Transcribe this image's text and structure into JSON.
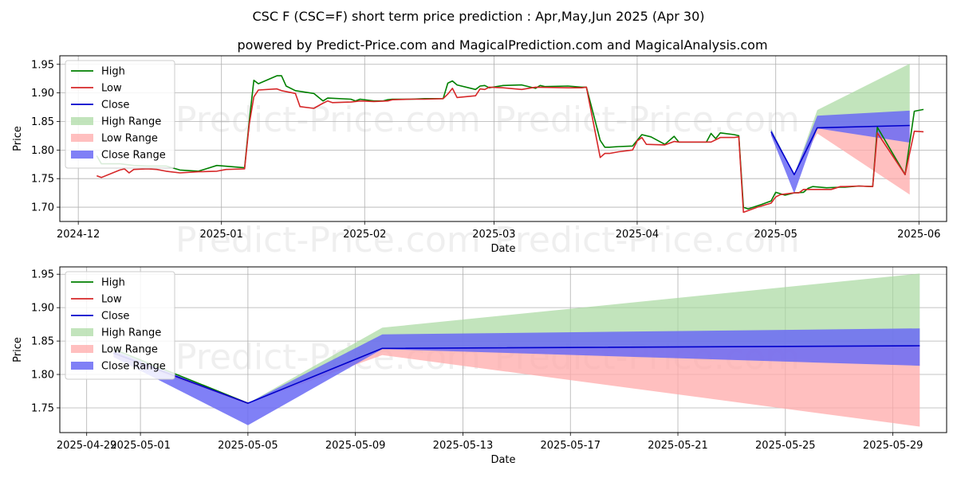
{
  "title": "CSC F (CSC=F) short term price prediction : Apr,May,Jun 2025 (Apr 30)",
  "subtitle": "powered by Predict-Price.com and MagicalPrediction.com and MagicalAnalysis.com",
  "watermark": "Predict-Price.com",
  "colors": {
    "high": "#008000",
    "low": "#d62728",
    "close": "#0000cc",
    "high_range": "#a8d8a0",
    "low_range": "#ffaaaa",
    "close_range": "#6a6af5"
  },
  "legend": [
    "High",
    "Low",
    "Close",
    "High Range",
    "Low Range",
    "Close Range"
  ],
  "chart_data": [
    {
      "type": "line",
      "xlabel": "Date",
      "ylabel": "Price",
      "xlim": [
        "2024-11-27",
        "2025-06-07"
      ],
      "ylim": [
        1.675,
        1.965
      ],
      "x_ticks": [
        "2024-12",
        "2025-01",
        "2025-02",
        "2025-03",
        "2025-04",
        "2025-05",
        "2025-06"
      ],
      "x_tick_dates": [
        "2024-12-01",
        "2025-01-01",
        "2025-02-01",
        "2025-03-01",
        "2025-04-01",
        "2025-05-01",
        "2025-06-01"
      ],
      "y_ticks": [
        "1.70",
        "1.75",
        "1.80",
        "1.85",
        "1.90",
        "1.95"
      ],
      "legend_position": "upper-left",
      "grid": true,
      "series": [
        {
          "name": "High",
          "points": [
            [
              "2024-12-05",
              1.79
            ],
            [
              "2024-12-06",
              1.776
            ],
            [
              "2024-12-10",
              1.776
            ],
            [
              "2024-12-13",
              1.773
            ],
            [
              "2024-12-16",
              1.772
            ],
            [
              "2024-12-20",
              1.772
            ],
            [
              "2024-12-23",
              1.765
            ],
            [
              "2024-12-27",
              1.763
            ],
            [
              "2024-12-31",
              1.773
            ],
            [
              "2025-01-06",
              1.769
            ],
            [
              "2025-01-07",
              1.85
            ],
            [
              "2025-01-08",
              1.922
            ],
            [
              "2025-01-09",
              1.916
            ],
            [
              "2025-01-13",
              1.93
            ],
            [
              "2025-01-14",
              1.93
            ],
            [
              "2025-01-15",
              1.912
            ],
            [
              "2025-01-17",
              1.904
            ],
            [
              "2025-01-21",
              1.899
            ],
            [
              "2025-01-23",
              1.886
            ],
            [
              "2025-01-24",
              1.891
            ],
            [
              "2025-01-29",
              1.889
            ],
            [
              "2025-01-30",
              1.886
            ],
            [
              "2025-01-31",
              1.889
            ],
            [
              "2025-02-03",
              1.886
            ],
            [
              "2025-02-05",
              1.886
            ],
            [
              "2025-02-06",
              1.888
            ],
            [
              "2025-02-07",
              1.889
            ],
            [
              "2025-02-11",
              1.889
            ],
            [
              "2025-02-14",
              1.89
            ],
            [
              "2025-02-18",
              1.89
            ],
            [
              "2025-02-19",
              1.917
            ],
            [
              "2025-02-20",
              1.921
            ],
            [
              "2025-02-21",
              1.914
            ],
            [
              "2025-02-25",
              1.906
            ],
            [
              "2025-02-26",
              1.912
            ],
            [
              "2025-02-27",
              1.913
            ],
            [
              "2025-02-28",
              1.909
            ],
            [
              "2025-03-03",
              1.913
            ],
            [
              "2025-03-07",
              1.914
            ],
            [
              "2025-03-10",
              1.908
            ],
            [
              "2025-03-11",
              1.913
            ],
            [
              "2025-03-12",
              1.911
            ],
            [
              "2025-03-17",
              1.912
            ],
            [
              "2025-03-20",
              1.91
            ],
            [
              "2025-03-21",
              1.91
            ],
            [
              "2025-03-24",
              1.817
            ],
            [
              "2025-03-25",
              1.805
            ],
            [
              "2025-03-26",
              1.805
            ],
            [
              "2025-03-28",
              1.806
            ],
            [
              "2025-03-31",
              1.807
            ],
            [
              "2025-04-02",
              1.827
            ],
            [
              "2025-04-04",
              1.823
            ],
            [
              "2025-04-07",
              1.81
            ],
            [
              "2025-04-09",
              1.824
            ],
            [
              "2025-04-10",
              1.814
            ],
            [
              "2025-04-14",
              1.814
            ],
            [
              "2025-04-16",
              1.814
            ],
            [
              "2025-04-17",
              1.829
            ],
            [
              "2025-04-18",
              1.82
            ],
            [
              "2025-04-19",
              1.83
            ],
            [
              "2025-04-22",
              1.827
            ],
            [
              "2025-04-23",
              1.825
            ],
            [
              "2025-04-24",
              1.7
            ],
            [
              "2025-04-25",
              1.697
            ],
            [
              "2025-04-28",
              1.705
            ],
            [
              "2025-04-30",
              1.711
            ],
            [
              "2025-05-01",
              1.726
            ],
            [
              "2025-05-03",
              1.721
            ],
            [
              "2025-05-05",
              1.725
            ],
            [
              "2025-05-07",
              1.726
            ],
            [
              "2025-05-08",
              1.733
            ],
            [
              "2025-05-09",
              1.736
            ],
            [
              "2025-05-12",
              1.734
            ],
            [
              "2025-05-15",
              1.735
            ],
            [
              "2025-05-16",
              1.735
            ],
            [
              "2025-05-19",
              1.737
            ],
            [
              "2025-05-22",
              1.736
            ],
            [
              "2025-05-23",
              1.84
            ],
            [
              "2025-05-29",
              1.757
            ],
            [
              "2025-05-31",
              1.868
            ],
            [
              "2025-06-02",
              1.871
            ]
          ]
        },
        {
          "name": "Low",
          "points": [
            [
              "2024-12-05",
              1.755
            ],
            [
              "2024-12-06",
              1.752
            ],
            [
              "2024-12-10",
              1.765
            ],
            [
              "2024-12-11",
              1.767
            ],
            [
              "2024-12-12",
              1.76
            ],
            [
              "2024-12-13",
              1.766
            ],
            [
              "2024-12-16",
              1.767
            ],
            [
              "2024-12-18",
              1.766
            ],
            [
              "2024-12-20",
              1.763
            ],
            [
              "2024-12-23",
              1.76
            ],
            [
              "2024-12-27",
              1.762
            ],
            [
              "2024-12-31",
              1.763
            ],
            [
              "2025-01-02",
              1.766
            ],
            [
              "2025-01-06",
              1.767
            ],
            [
              "2025-01-07",
              1.845
            ],
            [
              "2025-01-08",
              1.893
            ],
            [
              "2025-01-09",
              1.905
            ],
            [
              "2025-01-13",
              1.907
            ],
            [
              "2025-01-14",
              1.904
            ],
            [
              "2025-01-17",
              1.899
            ],
            [
              "2025-01-18",
              1.876
            ],
            [
              "2025-01-21",
              1.873
            ],
            [
              "2025-01-23",
              1.882
            ],
            [
              "2025-01-24",
              1.886
            ],
            [
              "2025-01-25",
              1.883
            ],
            [
              "2025-01-29",
              1.884
            ],
            [
              "2025-01-30",
              1.885
            ],
            [
              "2025-01-31",
              1.886
            ],
            [
              "2025-02-03",
              1.885
            ],
            [
              "2025-02-06",
              1.886
            ],
            [
              "2025-02-07",
              1.888
            ],
            [
              "2025-02-11",
              1.889
            ],
            [
              "2025-02-14",
              1.889
            ],
            [
              "2025-02-18",
              1.89
            ],
            [
              "2025-02-19",
              1.898
            ],
            [
              "2025-02-20",
              1.908
            ],
            [
              "2025-02-21",
              1.892
            ],
            [
              "2025-02-25",
              1.895
            ],
            [
              "2025-02-26",
              1.907
            ],
            [
              "2025-02-27",
              1.906
            ],
            [
              "2025-02-28",
              1.91
            ],
            [
              "2025-03-03",
              1.909
            ],
            [
              "2025-03-07",
              1.906
            ],
            [
              "2025-03-10",
              1.91
            ],
            [
              "2025-03-17",
              1.909
            ],
            [
              "2025-03-20",
              1.909
            ],
            [
              "2025-03-21",
              1.91
            ],
            [
              "2025-03-24",
              1.787
            ],
            [
              "2025-03-25",
              1.794
            ],
            [
              "2025-03-26",
              1.794
            ],
            [
              "2025-03-28",
              1.797
            ],
            [
              "2025-03-31",
              1.8
            ],
            [
              "2025-04-01",
              1.816
            ],
            [
              "2025-04-02",
              1.822
            ],
            [
              "2025-04-03",
              1.81
            ],
            [
              "2025-04-07",
              1.809
            ],
            [
              "2025-04-09",
              1.815
            ],
            [
              "2025-04-10",
              1.814
            ],
            [
              "2025-04-14",
              1.814
            ],
            [
              "2025-04-17",
              1.814
            ],
            [
              "2025-04-19",
              1.822
            ],
            [
              "2025-04-22",
              1.822
            ],
            [
              "2025-04-23",
              1.823
            ],
            [
              "2025-04-24",
              1.691
            ],
            [
              "2025-04-27",
              1.7
            ],
            [
              "2025-04-30",
              1.707
            ],
            [
              "2025-05-01",
              1.718
            ],
            [
              "2025-05-02",
              1.722
            ],
            [
              "2025-05-05",
              1.725
            ],
            [
              "2025-05-06",
              1.725
            ],
            [
              "2025-05-07",
              1.731
            ],
            [
              "2025-05-09",
              1.731
            ],
            [
              "2025-05-13",
              1.731
            ],
            [
              "2025-05-15",
              1.736
            ],
            [
              "2025-05-16",
              1.736
            ],
            [
              "2025-05-19",
              1.737
            ],
            [
              "2025-05-22",
              1.736
            ],
            [
              "2025-05-23",
              1.83
            ],
            [
              "2025-05-29",
              1.757
            ],
            [
              "2025-05-31",
              1.833
            ],
            [
              "2025-06-02",
              1.832
            ]
          ]
        },
        {
          "name": "Close",
          "points": [
            [
              "2025-04-30",
              1.832
            ],
            [
              "2025-05-05",
              1.757
            ],
            [
              "2025-05-10",
              1.839
            ],
            [
              "2025-05-30",
              1.843
            ]
          ]
        }
      ],
      "ranges": [
        {
          "name": "High Range",
          "points": [
            [
              "2025-04-30",
              1.838,
              1.826
            ],
            [
              "2025-05-05",
              1.757,
              1.757
            ],
            [
              "2025-05-10",
              1.87,
              1.838
            ],
            [
              "2025-05-30",
              1.951,
              1.843
            ]
          ]
        },
        {
          "name": "Low Range",
          "points": [
            [
              "2025-04-30",
              1.832,
              1.826
            ],
            [
              "2025-05-05",
              1.757,
              1.757
            ],
            [
              "2025-05-10",
              1.838,
              1.829
            ],
            [
              "2025-05-30",
              1.843,
              1.722
            ]
          ]
        },
        {
          "name": "Close Range",
          "points": [
            [
              "2025-04-30",
              1.836,
              1.826
            ],
            [
              "2025-05-05",
              1.757,
              1.724
            ],
            [
              "2025-05-10",
              1.86,
              1.838
            ],
            [
              "2025-05-30",
              1.869,
              1.813
            ]
          ]
        }
      ]
    },
    {
      "type": "line",
      "xlabel": "Date",
      "ylabel": "Price",
      "xlim": [
        "2025-04-28",
        "2025-05-31"
      ],
      "ylim": [
        1.713,
        1.961
      ],
      "x_ticks": [
        "2025-04-29",
        "2025-05-01",
        "2025-05-05",
        "2025-05-09",
        "2025-05-13",
        "2025-05-17",
        "2025-05-21",
        "2025-05-25",
        "2025-05-29"
      ],
      "y_ticks": [
        "1.75",
        "1.80",
        "1.85",
        "1.90",
        "1.95"
      ],
      "legend_position": "upper-left",
      "grid": true,
      "series": [
        {
          "name": "High",
          "points": [
            [
              "2025-04-30",
              1.838
            ],
            [
              "2025-05-05",
              1.757
            ]
          ]
        },
        {
          "name": "Low",
          "points": [
            [
              "2025-04-30",
              1.832
            ],
            [
              "2025-05-05",
              1.757
            ]
          ]
        },
        {
          "name": "Close",
          "points": [
            [
              "2025-04-30",
              1.832
            ],
            [
              "2025-05-05",
              1.757
            ],
            [
              "2025-05-10",
              1.839
            ],
            [
              "2025-05-30",
              1.843
            ]
          ]
        }
      ],
      "ranges": [
        {
          "name": "High Range",
          "points": [
            [
              "2025-04-30",
              1.838,
              1.826
            ],
            [
              "2025-05-05",
              1.757,
              1.757
            ],
            [
              "2025-05-10",
              1.87,
              1.838
            ],
            [
              "2025-05-30",
              1.951,
              1.843
            ]
          ]
        },
        {
          "name": "Low Range",
          "points": [
            [
              "2025-04-30",
              1.832,
              1.826
            ],
            [
              "2025-05-05",
              1.757,
              1.757
            ],
            [
              "2025-05-10",
              1.838,
              1.829
            ],
            [
              "2025-05-30",
              1.843,
              1.722
            ]
          ]
        },
        {
          "name": "Close Range",
          "points": [
            [
              "2025-04-30",
              1.836,
              1.826
            ],
            [
              "2025-05-05",
              1.757,
              1.724
            ],
            [
              "2025-05-10",
              1.86,
              1.838
            ],
            [
              "2025-05-30",
              1.869,
              1.813
            ]
          ]
        }
      ]
    }
  ]
}
